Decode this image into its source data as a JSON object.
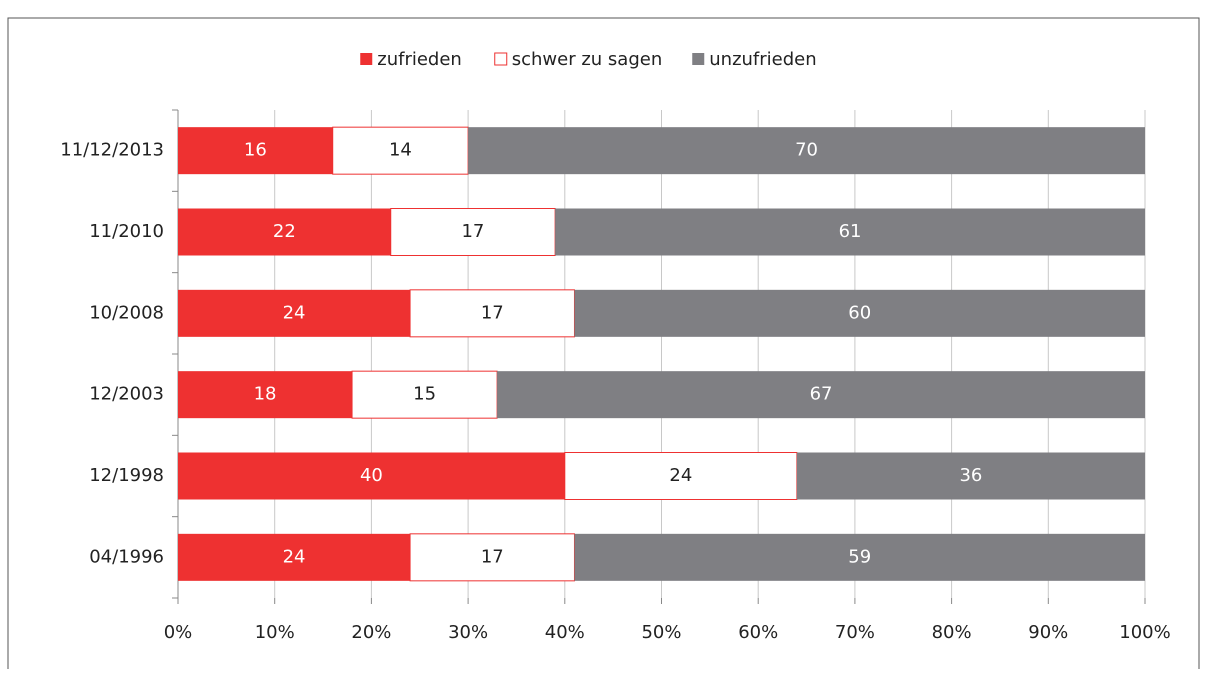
{
  "chart_data": {
    "type": "bar",
    "orientation": "horizontal",
    "stacked": true,
    "categories": [
      "11/12/2013",
      "11/2010",
      "10/2008",
      "12/2003",
      "12/1998",
      "04/1996"
    ],
    "series": [
      {
        "name": "zufrieden",
        "color": "#ee3131",
        "values": [
          16,
          22,
          24,
          18,
          40,
          24
        ]
      },
      {
        "name": "schwer zu sagen",
        "color": "#ffffff",
        "values": [
          14,
          17,
          17,
          15,
          24,
          17
        ]
      },
      {
        "name": "unzufrieden",
        "color": "#7f7f83",
        "values": [
          70,
          61,
          60,
          67,
          36,
          59
        ]
      }
    ],
    "xlim": [
      0,
      100
    ],
    "xticks": [
      {
        "value": 0,
        "label": "0%"
      },
      {
        "value": 10,
        "label": "10%"
      },
      {
        "value": 20,
        "label": "20%"
      },
      {
        "value": 30,
        "label": "30%"
      },
      {
        "value": 40,
        "label": "40%"
      },
      {
        "value": 50,
        "label": "50%"
      },
      {
        "value": 60,
        "label": "60%"
      },
      {
        "value": 70,
        "label": "70%"
      },
      {
        "value": 80,
        "label": "80%"
      },
      {
        "value": 90,
        "label": "90%"
      },
      {
        "value": 100,
        "label": "100%"
      }
    ],
    "grid": true,
    "legend": "top"
  }
}
